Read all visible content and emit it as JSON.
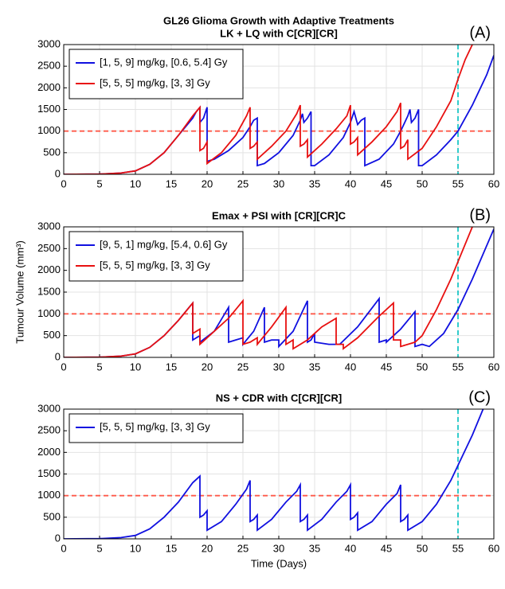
{
  "title": "GL26 Glioma Growth with Adaptive Treatments",
  "chart_data": [
    {
      "type": "line",
      "title": "LK + LQ with C[CR][CR]",
      "panel_label": "(A)",
      "xlim": [
        0,
        60
      ],
      "xticks": [
        0,
        5,
        10,
        15,
        20,
        25,
        30,
        35,
        40,
        45,
        50,
        55,
        60
      ],
      "ylim": [
        0,
        3000
      ],
      "yticks": [
        0,
        500,
        1000,
        1500,
        2000,
        2500,
        3000
      ],
      "grid": true,
      "legend": "upper left",
      "hline": 1000,
      "hline_color": "#ff5a4a",
      "vline": 55,
      "vline_color": "#1cc6c6",
      "series": [
        {
          "name": "[1, 5, 9] mg/kg, [0.6, 5.4] Gy",
          "color": "#1010e0",
          "x": [
            0,
            5,
            8,
            10,
            12,
            14,
            16,
            18,
            18.5,
            19,
            19,
            19.5,
            20,
            20,
            21,
            23,
            25,
            26,
            26.5,
            27,
            27,
            28,
            30,
            32,
            33,
            33.3,
            33.5,
            34,
            34.5,
            34.5,
            35,
            37,
            39,
            40,
            40.5,
            41,
            41.5,
            42,
            42,
            44,
            46,
            47,
            48,
            48.3,
            48.5,
            49,
            49.5,
            49.5,
            50,
            52,
            54,
            55,
            57,
            59,
            60
          ],
          "values": [
            0,
            5,
            30,
            80,
            230,
            500,
            900,
            1300,
            1450,
            1550,
            1200,
            1300,
            1550,
            300,
            350,
            550,
            850,
            1100,
            1250,
            1300,
            200,
            250,
            500,
            900,
            1250,
            1400,
            1200,
            1300,
            1450,
            200,
            200,
            450,
            850,
            1200,
            1450,
            1150,
            1250,
            1300,
            200,
            350,
            700,
            1000,
            1350,
            1500,
            1200,
            1300,
            1500,
            200,
            200,
            450,
            800,
            1000,
            1600,
            2300,
            2750
          ]
        },
        {
          "name": "[5, 5, 5] mg/kg, [3, 3] Gy",
          "color": "#e81010",
          "x": [
            0,
            5,
            8,
            10,
            12,
            14,
            16,
            18,
            19,
            19,
            19.5,
            20,
            20,
            22,
            24,
            25.5,
            26,
            26,
            26.5,
            27,
            27,
            29,
            31,
            32.5,
            33,
            33,
            33.5,
            34,
            34,
            36,
            38,
            39.5,
            40,
            40,
            40.5,
            41,
            41,
            43,
            45,
            46.5,
            47,
            47,
            47.5,
            48,
            48,
            50,
            52,
            54,
            55,
            56,
            57
          ],
          "values": [
            0,
            5,
            30,
            80,
            230,
            500,
            900,
            1350,
            1550,
            550,
            600,
            750,
            250,
            500,
            900,
            1350,
            1550,
            600,
            650,
            750,
            350,
            650,
            1000,
            1400,
            1600,
            650,
            700,
            800,
            400,
            700,
            1050,
            1350,
            1600,
            700,
            750,
            850,
            450,
            750,
            1100,
            1450,
            1650,
            600,
            650,
            800,
            350,
            600,
            1100,
            1700,
            2200,
            2650,
            3000
          ]
        }
      ]
    },
    {
      "type": "line",
      "title": "Emax + PSI with [CR][CR]C",
      "panel_label": "(B)",
      "ylabel": "Tumour Volume (mm³)",
      "xlim": [
        0,
        60
      ],
      "xticks": [
        0,
        5,
        10,
        15,
        20,
        25,
        30,
        35,
        40,
        45,
        50,
        55,
        60
      ],
      "ylim": [
        0,
        3000
      ],
      "yticks": [
        0,
        500,
        1000,
        1500,
        2000,
        2500,
        3000
      ],
      "grid": true,
      "legend": "upper left",
      "hline": 1000,
      "hline_color": "#ff5a4a",
      "vline": 55,
      "vline_color": "#1cc6c6",
      "series": [
        {
          "name": "[9, 5, 1] mg/kg, [5.4, 0.6] Gy",
          "color": "#1010e0",
          "x": [
            0,
            5,
            8,
            10,
            12,
            14,
            16,
            17.5,
            18,
            18,
            18.5,
            19,
            19,
            21,
            23,
            23,
            24,
            25,
            25,
            26.5,
            28,
            28,
            29,
            30,
            30,
            32,
            34,
            34,
            34.5,
            35,
            35,
            37,
            38.5,
            41,
            44,
            44,
            45,
            45,
            47,
            49,
            49,
            50,
            51,
            53,
            55,
            57,
            60
          ],
          "values": [
            0,
            5,
            30,
            80,
            230,
            500,
            850,
            1150,
            1250,
            400,
            450,
            500,
            350,
            600,
            1150,
            350,
            400,
            450,
            300,
            600,
            1150,
            350,
            400,
            400,
            250,
            600,
            1300,
            350,
            400,
            550,
            350,
            300,
            300,
            700,
            1350,
            350,
            400,
            350,
            650,
            1050,
            250,
            300,
            250,
            550,
            1100,
            1800,
            2950
          ]
        },
        {
          "name": "[5, 5, 5] mg/kg, [3, 3] Gy",
          "color": "#e81010",
          "x": [
            0,
            5,
            8,
            10,
            12,
            14,
            16,
            18,
            18,
            19,
            19,
            21,
            23,
            25,
            25,
            26,
            27,
            27,
            29,
            31,
            31,
            32,
            32,
            34,
            36,
            38,
            38,
            39,
            39,
            41,
            44,
            46,
            46,
            47,
            47,
            48,
            49,
            50,
            52,
            54,
            55,
            57
          ],
          "values": [
            0,
            5,
            30,
            80,
            230,
            500,
            850,
            1250,
            550,
            650,
            300,
            600,
            900,
            1300,
            300,
            350,
            450,
            300,
            700,
            1150,
            300,
            400,
            200,
            400,
            700,
            900,
            300,
            300,
            200,
            450,
            950,
            1250,
            400,
            400,
            250,
            300,
            350,
            500,
            1100,
            1800,
            2200,
            3000
          ]
        }
      ]
    },
    {
      "type": "line",
      "title": "NS + CDR with C[CR][CR]",
      "panel_label": "(C)",
      "xlabel": "Time (Days)",
      "xlim": [
        0,
        60
      ],
      "xticks": [
        0,
        5,
        10,
        15,
        20,
        25,
        30,
        35,
        40,
        45,
        50,
        55,
        60
      ],
      "ylim": [
        0,
        3000
      ],
      "yticks": [
        0,
        500,
        1000,
        1500,
        2000,
        2500,
        3000
      ],
      "grid": true,
      "legend": "upper left",
      "hline": 1000,
      "hline_color": "#ff5a4a",
      "vline": 55,
      "vline_color": "#1cc6c6",
      "series": [
        {
          "name": "[5, 5, 5] mg/kg, [3, 3] Gy",
          "color": "#1010e0",
          "x": [
            0,
            5,
            8,
            10,
            12,
            14,
            16,
            18,
            19,
            19,
            19.5,
            20,
            20,
            22,
            24,
            25.5,
            26,
            26,
            26.5,
            27,
            27,
            29,
            31,
            32.5,
            33,
            33,
            33.5,
            34,
            34,
            36,
            38,
            39.5,
            40,
            40,
            40.5,
            41,
            41,
            43,
            45,
            46.5,
            47,
            47,
            47.5,
            48,
            48,
            50,
            52,
            54,
            55,
            57,
            58.5
          ],
          "values": [
            0,
            5,
            30,
            80,
            230,
            500,
            850,
            1300,
            1450,
            500,
            550,
            650,
            200,
            400,
            800,
            1150,
            1350,
            400,
            450,
            550,
            200,
            450,
            850,
            1100,
            1250,
            400,
            450,
            550,
            200,
            450,
            850,
            1100,
            1250,
            450,
            500,
            600,
            200,
            400,
            800,
            1050,
            1250,
            400,
            450,
            550,
            200,
            400,
            800,
            1350,
            1700,
            2400,
            3000
          ]
        }
      ]
    }
  ]
}
